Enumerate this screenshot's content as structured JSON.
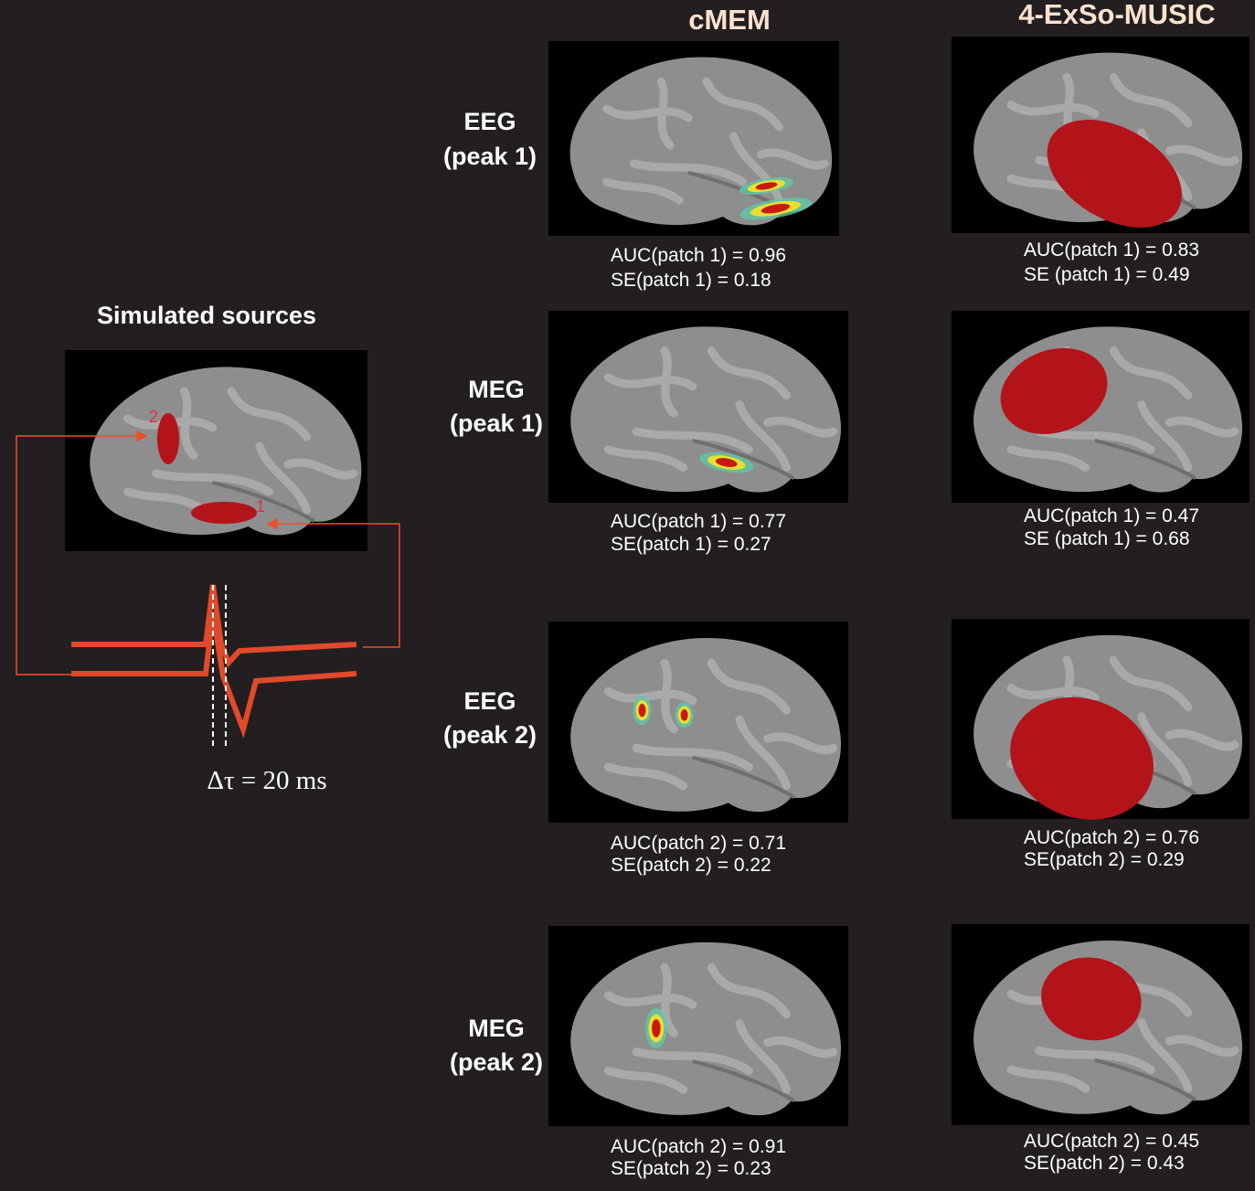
{
  "columns": [
    "cMEM",
    "4-ExSo-MUSIC"
  ],
  "rows": [
    {
      "label": [
        "EEG",
        "(peak 1)"
      ],
      "cmem": [
        "AUC(patch 1) = 0.96",
        "SE(patch 1) = 0.18"
      ],
      "music": [
        "AUC(patch 1) = 0.83",
        "SE (patch 1) = 0.49"
      ]
    },
    {
      "label": [
        "MEG",
        "(peak 1)"
      ],
      "cmem": [
        "AUC(patch 1) = 0.77",
        "SE(patch 1) = 0.27"
      ],
      "music": [
        "AUC(patch 1) = 0.47",
        "SE (patch 1) = 0.68"
      ]
    },
    {
      "label": [
        "EEG",
        "(peak 2)"
      ],
      "cmem": [
        "AUC(patch 2) = 0.71",
        "SE(patch 2) = 0.22"
      ],
      "music": [
        "AUC(patch 2)  = 0.76",
        "SE(patch 2) = 0.29"
      ]
    },
    {
      "label": [
        "MEG",
        "(peak 2)"
      ],
      "cmem": [
        "AUC(patch 2)  = 0.91",
        "SE(patch 2) = 0.23"
      ],
      "music": [
        "AUC(patch 2)  = 0.45",
        "SE(patch 2) = 0.43"
      ]
    }
  ],
  "simulated": {
    "title": "Simulated sources",
    "patches": [
      "2",
      "1"
    ],
    "delay": "Δτ = 20 ms"
  }
}
